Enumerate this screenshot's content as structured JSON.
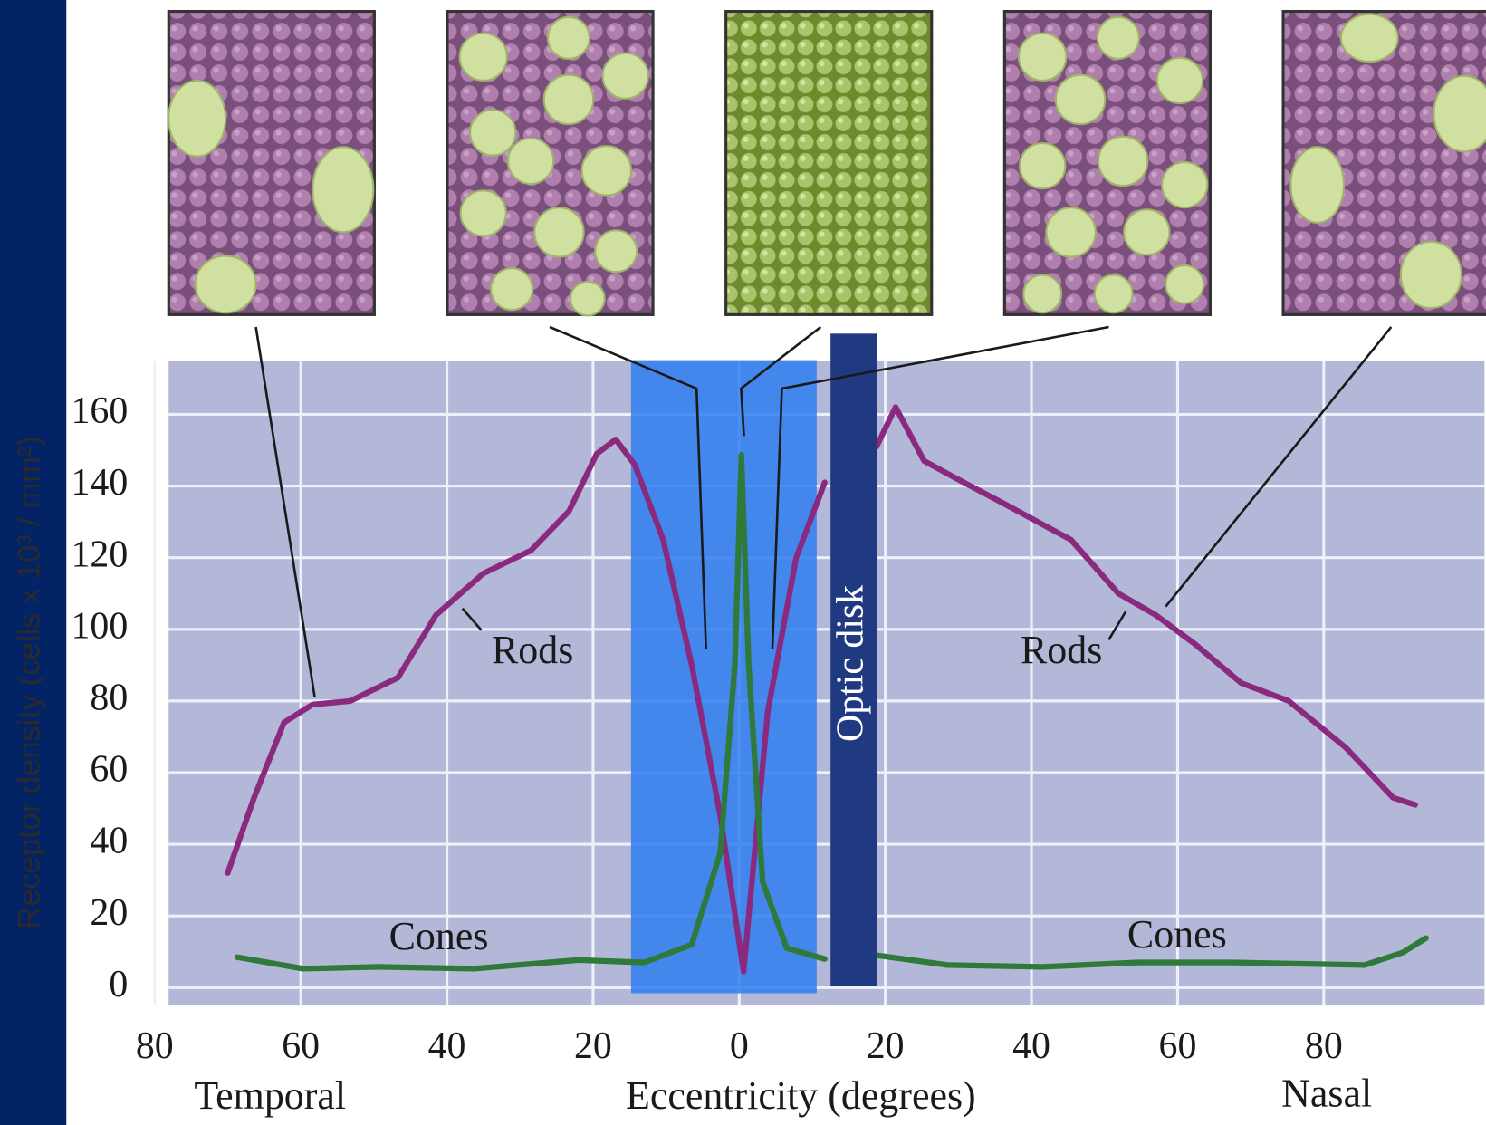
{
  "chart_data": {
    "type": "line",
    "y_label": "Receptor density (cells x 10³ / mm²)",
    "x_label": "Eccentricity (degrees)",
    "x_left_label": "Temporal",
    "x_right_label": "Nasal",
    "optic_disk": {
      "label": "Optic disk",
      "range": [
        12.5,
        18.9
      ]
    },
    "highlight_range": [
      -14.8,
      10.6
    ],
    "series": [
      {
        "name": "Rods",
        "color": "#8a2a7e",
        "x": [
          -70,
          -66.4,
          -62.3,
          -58.4,
          -53.2,
          -46.7,
          -41.5,
          -35,
          -28.5,
          -23.3,
          -19.5,
          -16.9,
          -14.3,
          -10.4,
          -6.5,
          -2.6,
          0.6,
          3.9,
          7.8,
          11.7,
          null,
          18.8,
          21.4,
          25.3,
          29.8,
          36.3,
          45.4,
          51.9,
          57,
          62.3,
          68.7,
          75.2,
          83,
          89.5,
          92.5
        ],
        "values": [
          32,
          53,
          74,
          79,
          80,
          86.5,
          104,
          115.6,
          122,
          133,
          149,
          153,
          146,
          125,
          90,
          48,
          4.5,
          77,
          120,
          141,
          null,
          151,
          162,
          147,
          142,
          135,
          125,
          110,
          104,
          96,
          85,
          80,
          67,
          53,
          51
        ]
      },
      {
        "name": "Cones",
        "color": "#2f7a3a",
        "x": [
          -68.7,
          -59.7,
          -49.3,
          -36.3,
          -22,
          -13,
          -6.5,
          -2.6,
          -0.6,
          0.3,
          1.3,
          3.2,
          6.5,
          11.7,
          null,
          18.9,
          28.5,
          41.5,
          54.5,
          67.4,
          85.6,
          90.8,
          94
        ],
        "values": [
          8.5,
          5.3,
          5.8,
          5.3,
          7.7,
          7,
          12,
          37.6,
          90,
          148.7,
          90,
          29.6,
          11,
          8,
          null,
          9,
          6.3,
          5.8,
          7,
          7,
          6.3,
          9.8,
          13.8
        ]
      }
    ],
    "xlim": [
      -80,
      102
    ],
    "ylim": [
      -5,
      175
    ],
    "xticks": [
      {
        "value": -80,
        "label": "80"
      },
      {
        "value": -60,
        "label": "60"
      },
      {
        "value": -40,
        "label": "40"
      },
      {
        "value": -20,
        "label": "20"
      },
      0,
      20,
      40,
      60,
      80
    ],
    "yticks": [
      0,
      20,
      40,
      60,
      80,
      100,
      120,
      140,
      160
    ],
    "grid": true
  }
}
